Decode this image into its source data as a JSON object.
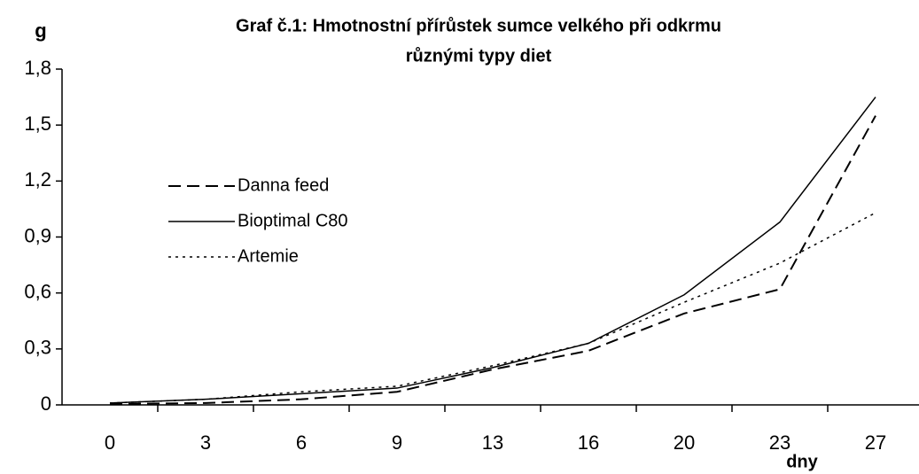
{
  "chart_data": {
    "type": "line",
    "title": [
      "Graf č.1: Hmotnostní přírůstek sumce velkého při odkrmu",
      "různými typy diet"
    ],
    "y_label": "g",
    "x_label": "dny",
    "categories": [
      "0",
      "3",
      "6",
      "9",
      "13",
      "16",
      "20",
      "23",
      "27"
    ],
    "series": [
      {
        "name": "Danna feed",
        "color": "#000000",
        "dash": "dashed",
        "values": [
          0.005,
          0.01,
          0.03,
          0.07,
          0.19,
          0.29,
          0.49,
          0.62,
          1.55
        ]
      },
      {
        "name": "Bioptimal C80",
        "color": "#000000",
        "dash": "solid",
        "values": [
          0.01,
          0.03,
          0.06,
          0.09,
          0.2,
          0.33,
          0.59,
          0.98,
          1.65
        ]
      },
      {
        "name": "Artemie",
        "color": "#000000",
        "dash": "dotted",
        "values": [
          0.01,
          0.03,
          0.07,
          0.1,
          0.21,
          0.33,
          0.55,
          0.76,
          1.03
        ]
      }
    ],
    "ylim": [
      0,
      1.8
    ],
    "yticks": [
      0,
      {
        "value": 0.3,
        "label": "0,3"
      },
      {
        "value": 0.6,
        "label": "0,6"
      },
      {
        "value": 0.9,
        "label": "0,9"
      },
      {
        "value": 1.2,
        "label": "1,2"
      },
      {
        "value": 1.5,
        "label": "1,5"
      },
      {
        "value": 1.8,
        "label": "1,8"
      }
    ],
    "grid": false,
    "legend": "left"
  }
}
